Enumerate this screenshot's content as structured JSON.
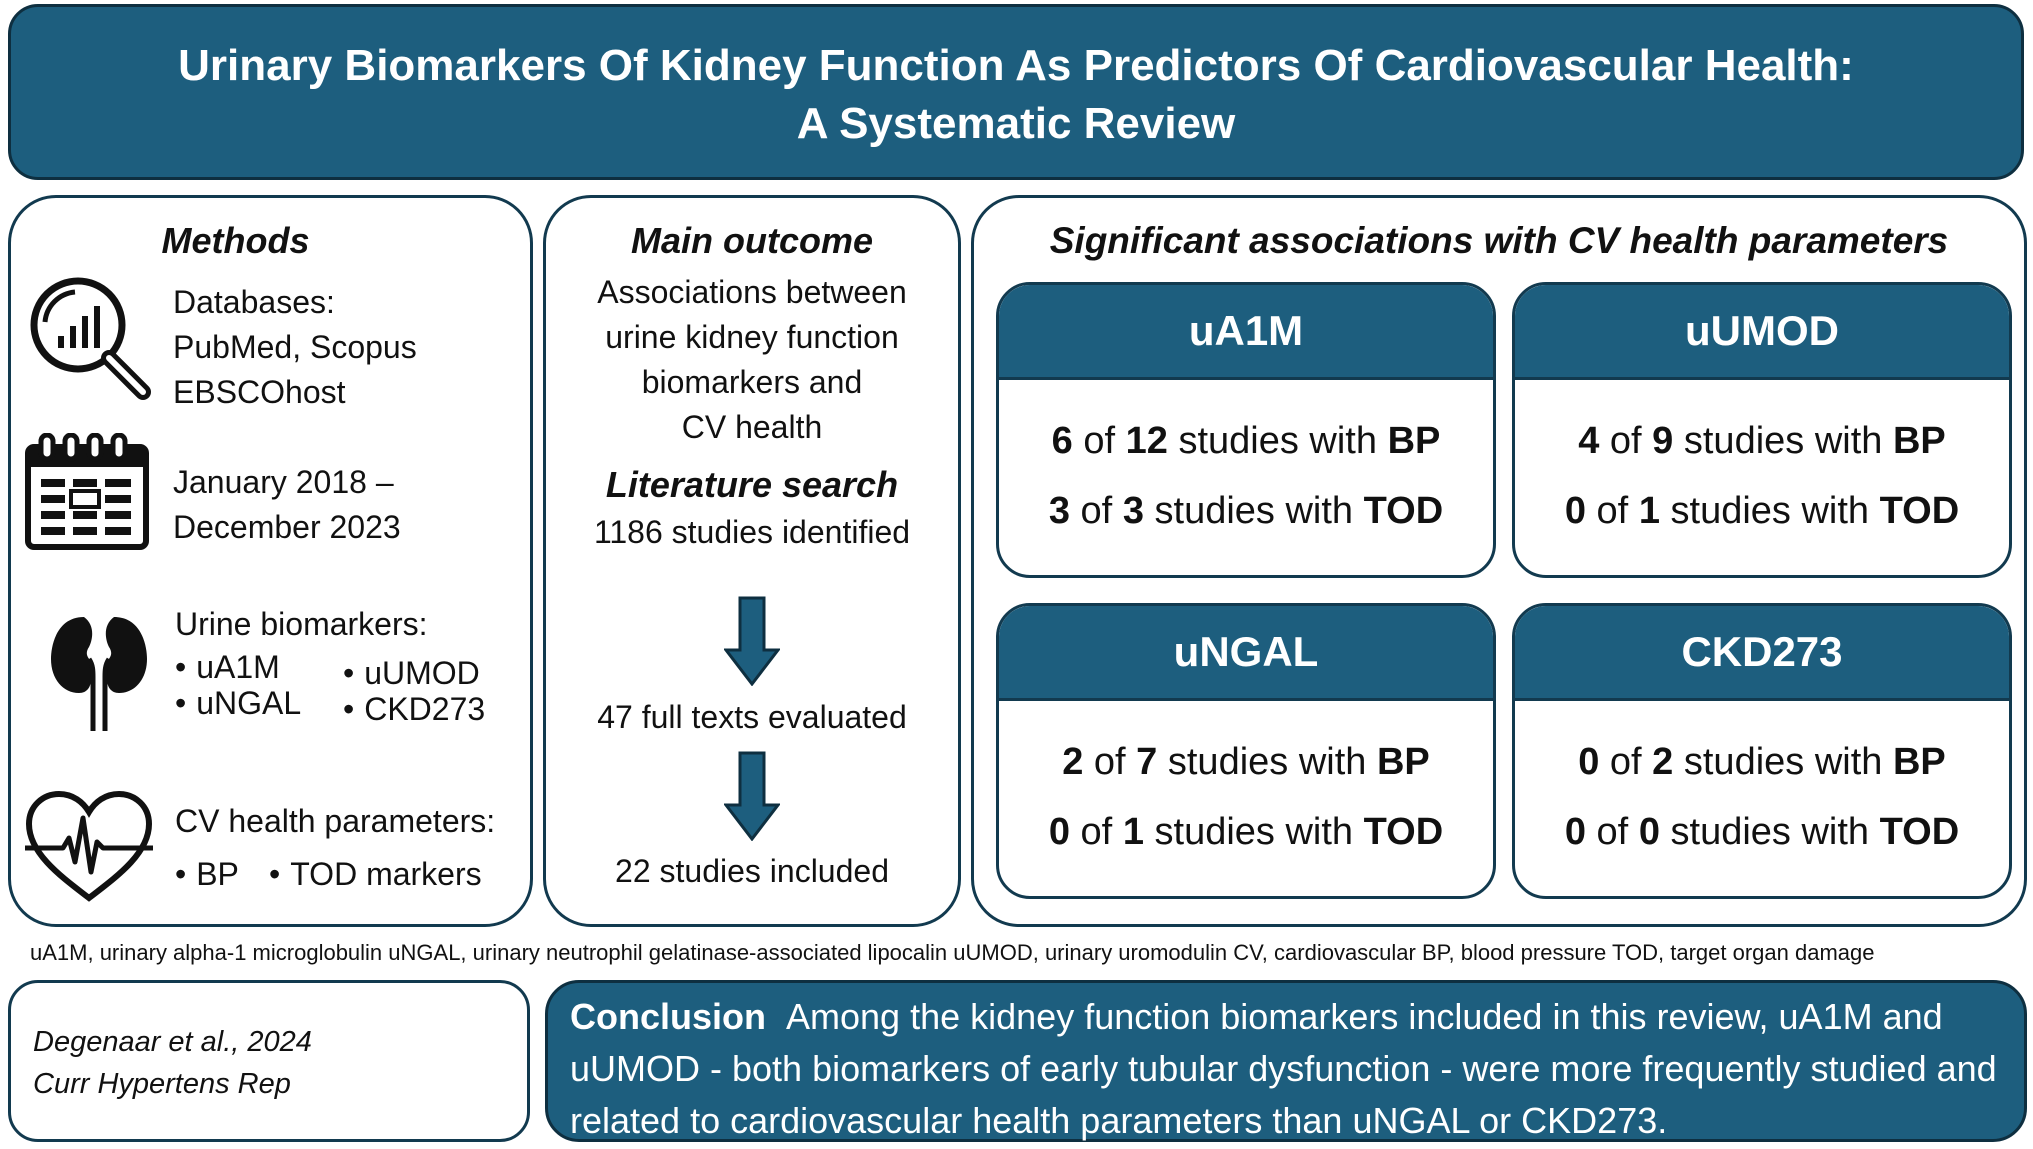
{
  "title": {
    "line1": "Urinary Biomarkers Of Kidney Function As Predictors Of Cardiovascular Health:",
    "line2": "A Systematic Review"
  },
  "methods": {
    "heading": "Methods",
    "databases": {
      "line1": "Databases:",
      "line2": "PubMed, Scopus",
      "line3": "EBSCOhost"
    },
    "period": {
      "line1": "January 2018 –",
      "line2": "December 2023"
    },
    "biomarkers": {
      "heading": "Urine biomarkers:",
      "items": [
        "uA1M",
        "uUMOD",
        "uNGAL",
        "CKD273"
      ]
    },
    "cv": {
      "heading": "CV health parameters:",
      "items": [
        "BP",
        "TOD markers"
      ]
    }
  },
  "main": {
    "heading": "Main outcome",
    "text": {
      "line1": "Associations between",
      "line2": "urine kidney function",
      "line3": "biomarkers and",
      "line4": "CV health"
    },
    "lit_heading": "Literature search",
    "steps": [
      "1186 studies identified",
      "47 full texts evaluated",
      "22 studies included"
    ]
  },
  "assoc": {
    "heading": "Significant associations with CV health parameters",
    "of_word": "of",
    "studies_with": "studies with",
    "cards": [
      {
        "name": "uA1M",
        "rows": [
          {
            "n": "6",
            "total": "12",
            "param": "BP"
          },
          {
            "n": "3",
            "total": "3",
            "param": "TOD"
          }
        ]
      },
      {
        "name": "uUMOD",
        "rows": [
          {
            "n": "4",
            "total": "9",
            "param": "BP"
          },
          {
            "n": "0",
            "total": "1",
            "param": "TOD"
          }
        ]
      },
      {
        "name": "uNGAL",
        "rows": [
          {
            "n": "2",
            "total": "7",
            "param": "BP"
          },
          {
            "n": "0",
            "total": "1",
            "param": "TOD"
          }
        ]
      },
      {
        "name": "CKD273",
        "rows": [
          {
            "n": "0",
            "total": "2",
            "param": "BP"
          },
          {
            "n": "0",
            "total": "0",
            "param": "TOD"
          }
        ]
      }
    ]
  },
  "abbreviations": "uA1M, urinary alpha-1 microglobulin  uNGAL, urinary neutrophil gelatinase-associated lipocalin  uUMOD, urinary uromodulin  CV, cardiovascular  BP, blood pressure  TOD, target organ damage",
  "citation": {
    "line1": "Degenaar et al., 2024",
    "line2": "Curr Hypertens Rep"
  },
  "conclusion": {
    "label": "Conclusion",
    "text": "Among the kidney function biomarkers included in this review, uA1M and uUMOD - both biomarkers of early tubular dysfunction - were more frequently studied and related to cardiovascular health parameters than uNGAL or CKD273."
  },
  "colors": {
    "primary": "#1d5e7e",
    "border": "#123a4f"
  }
}
